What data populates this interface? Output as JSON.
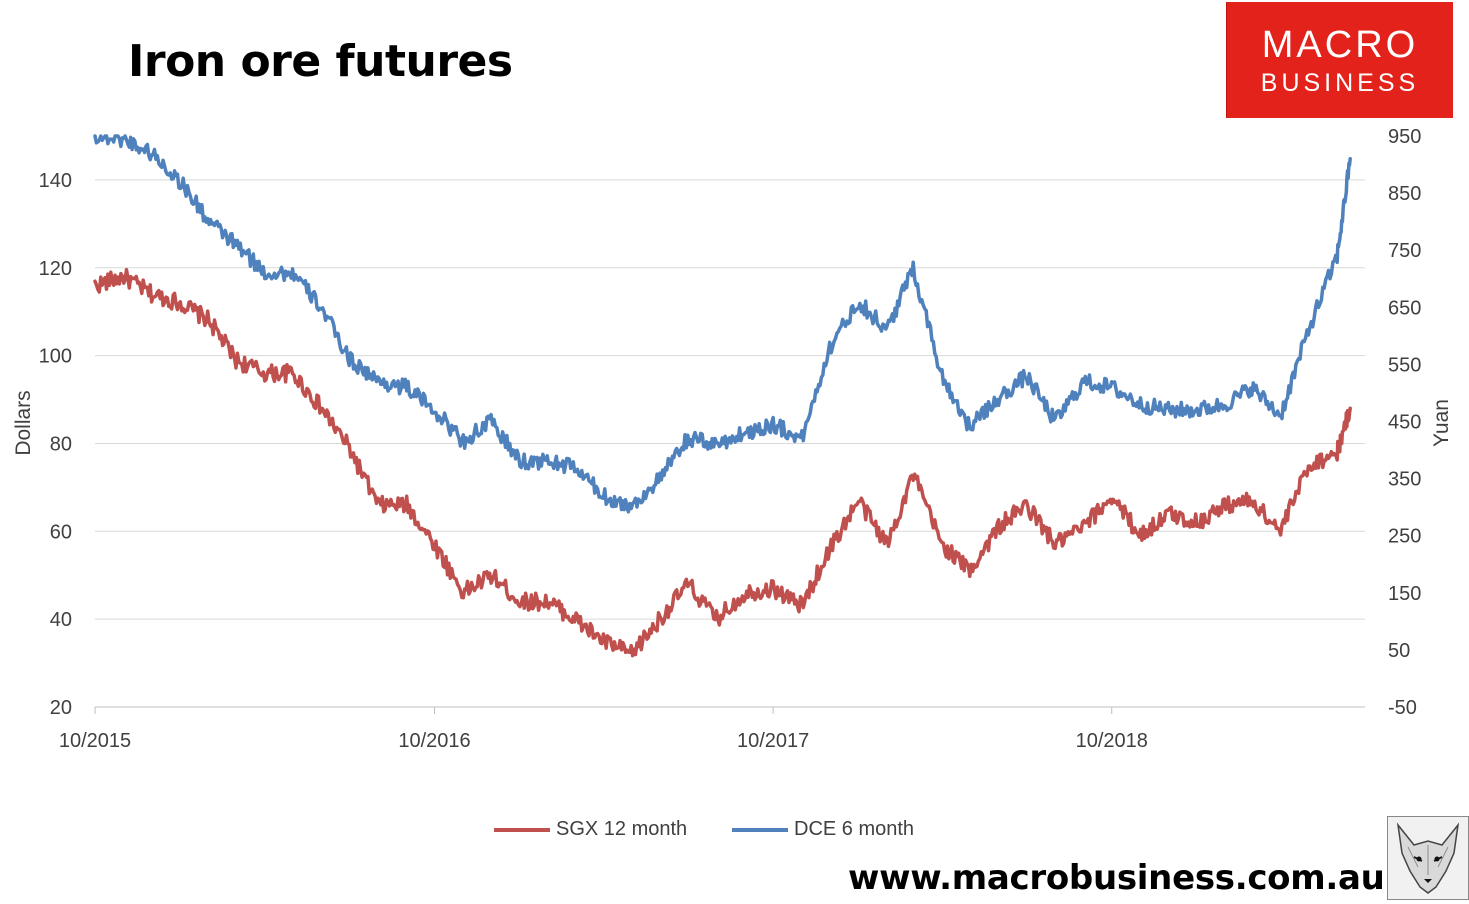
{
  "title": "Iron ore futures",
  "logo": {
    "line1": "MACRO",
    "line2": "BUSINESS"
  },
  "website": "www.macrobusiness.com.au",
  "colors": {
    "sgx": "#c0504d",
    "dce": "#4f81bd",
    "logo": "#e3231b"
  },
  "chart_data": {
    "type": "line",
    "ylabel": "Dollars",
    "y2label": "Yuan",
    "x_ticks": [
      "10/2015",
      "10/2016",
      "10/2017",
      "10/2018"
    ],
    "ylim": [
      20,
      150
    ],
    "y_ticks": [
      20,
      40,
      60,
      80,
      100,
      120,
      140
    ],
    "y2lim": [
      -50,
      950
    ],
    "y2_ticks": [
      -50,
      50,
      150,
      250,
      350,
      450,
      550,
      650,
      750,
      850,
      950
    ],
    "xlim": [
      "2015-10",
      "2019-07"
    ],
    "grid": true,
    "legend": "bottom",
    "series": [
      {
        "name": "SGX 12 month",
        "axis": "left",
        "color": "#c0504d",
        "x": [
          "2015-10-01",
          "2015-11-01",
          "2015-12-01",
          "2016-01-01",
          "2016-02-01",
          "2016-03-01",
          "2016-04-01",
          "2016-05-01",
          "2016-06-01",
          "2016-07-01",
          "2016-08-01",
          "2016-09-01",
          "2016-10-01",
          "2016-11-01",
          "2016-12-01",
          "2017-01-01",
          "2017-02-01",
          "2017-03-01",
          "2017-04-01",
          "2017-05-01",
          "2017-06-01",
          "2017-07-01",
          "2017-08-01",
          "2017-09-01",
          "2017-10-01",
          "2017-11-01",
          "2017-12-01",
          "2018-01-01",
          "2018-02-01",
          "2018-03-01",
          "2018-04-01",
          "2018-05-01",
          "2018-06-01",
          "2018-07-01",
          "2018-08-01",
          "2018-09-01",
          "2018-10-01",
          "2018-11-01",
          "2018-12-01",
          "2019-01-01",
          "2019-02-01",
          "2019-03-01",
          "2019-04-01",
          "2019-05-01",
          "2019-06-01",
          "2019-06-15"
        ],
        "values": [
          116,
          118,
          114,
          112,
          108,
          99,
          96,
          96,
          88,
          79,
          66,
          66,
          57,
          46,
          50,
          44,
          44,
          40,
          35,
          32,
          40,
          48,
          40,
          46,
          47,
          43,
          56,
          67,
          57,
          73,
          57,
          51,
          61,
          66,
          57,
          61,
          68,
          59,
          64,
          62,
          66,
          67,
          60,
          75,
          78,
          88
        ]
      },
      {
        "name": "DCE 6 month",
        "axis": "right",
        "color": "#4f81bd",
        "x": [
          "2015-10-01",
          "2015-11-01",
          "2015-12-01",
          "2016-01-01",
          "2016-02-01",
          "2016-03-01",
          "2016-04-01",
          "2016-05-01",
          "2016-06-01",
          "2016-07-01",
          "2016-08-01",
          "2016-09-01",
          "2016-10-01",
          "2016-11-01",
          "2016-12-01",
          "2017-01-01",
          "2017-02-01",
          "2017-03-01",
          "2017-04-01",
          "2017-05-01",
          "2017-06-01",
          "2017-07-01",
          "2017-08-01",
          "2017-09-01",
          "2017-10-01",
          "2017-11-01",
          "2017-12-01",
          "2018-01-01",
          "2018-02-01",
          "2018-03-01",
          "2018-04-01",
          "2018-05-01",
          "2018-06-01",
          "2018-07-01",
          "2018-08-01",
          "2018-09-01",
          "2018-10-01",
          "2018-11-01",
          "2018-12-01",
          "2019-01-01",
          "2019-02-01",
          "2019-03-01",
          "2019-04-01",
          "2019-05-01",
          "2019-06-01",
          "2019-06-15"
        ],
        "values": [
          950,
          945,
          920,
          870,
          800,
          760,
          710,
          710,
          650,
          560,
          520,
          510,
          470,
          415,
          450,
          380,
          380,
          370,
          320,
          300,
          350,
          420,
          410,
          430,
          445,
          420,
          580,
          660,
          610,
          720,
          530,
          440,
          490,
          530,
          450,
          520,
          510,
          480,
          470,
          470,
          480,
          510,
          460,
          610,
          740,
          910
        ]
      }
    ]
  }
}
